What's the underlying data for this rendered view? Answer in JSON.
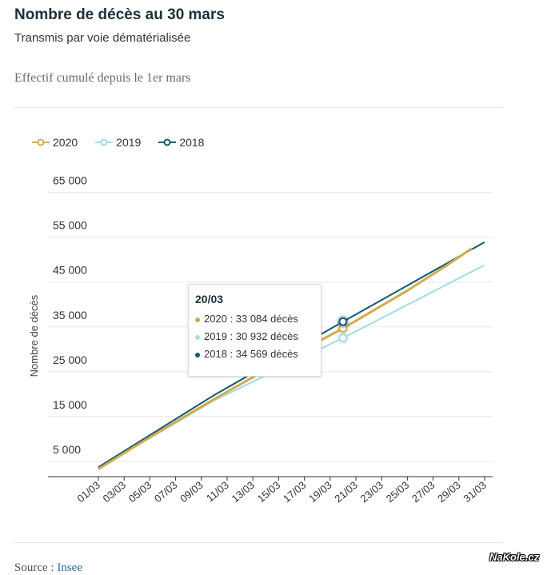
{
  "header": {
    "title": "Nombre de décès au 30 mars",
    "subtitle": "Transmis par voie dématérialisée",
    "description": "Effectif cumulé depuis le 1er mars"
  },
  "legend": [
    {
      "label": "2020",
      "color": "#d4a94e"
    },
    {
      "label": "2019",
      "color": "#a3dbe6"
    },
    {
      "label": "2018",
      "color": "#0f5a70"
    }
  ],
  "tooltip": {
    "date": "20/03",
    "rows": [
      {
        "text": "2020 : 33 084 décès",
        "color": "#d4a94e"
      },
      {
        "text": "2019 : 30 932 décès",
        "color": "#a3dbe6"
      },
      {
        "text": "2018 : 34 569 décès",
        "color": "#0f5a70"
      }
    ]
  },
  "source": {
    "prefix": "Source : ",
    "link": "Insee"
  },
  "watermark": "NaKole.cz",
  "chart_data": {
    "type": "line",
    "ylabel": "Nombre de décès",
    "ylim": [
      0,
      66000
    ],
    "y_ticks": [
      {
        "value": 5000,
        "label": "5 000"
      },
      {
        "value": 15000,
        "label": "15 000"
      },
      {
        "value": 25000,
        "label": "25 000"
      },
      {
        "value": 35000,
        "label": "35 000"
      },
      {
        "value": 45000,
        "label": "45 000"
      },
      {
        "value": 55000,
        "label": "55 000"
      },
      {
        "value": 65000,
        "label": "65 000"
      }
    ],
    "x_tick_labels": [
      "01/03",
      "03/03",
      "05/03",
      "07/03",
      "09/03",
      "11/03",
      "13/03",
      "15/03",
      "17/03",
      "19/03",
      "21/03",
      "23/03",
      "25/03",
      "27/03",
      "29/03",
      "31/03"
    ],
    "highlight_x": "20/03",
    "series": [
      {
        "name": "2020",
        "color": "#d4a94e",
        "x": [
          "01/03",
          "05/03",
          "10/03",
          "15/03",
          "20/03",
          "25/03",
          "28/03",
          "30/03"
        ],
        "y": [
          1700,
          8800,
          17300,
          25400,
          33084,
          41500,
          47000,
          50900
        ]
      },
      {
        "name": "2019",
        "color": "#a3dbe6",
        "x": [
          "01/03",
          "10/03",
          "20/03",
          "31/03"
        ],
        "y": [
          1900,
          17000,
          30932,
          47200
        ]
      },
      {
        "name": "2018",
        "color": "#0f5a70",
        "x": [
          "01/03",
          "10/03",
          "20/03",
          "31/03"
        ],
        "y": [
          2100,
          18200,
          34569,
          52300
        ]
      }
    ]
  }
}
